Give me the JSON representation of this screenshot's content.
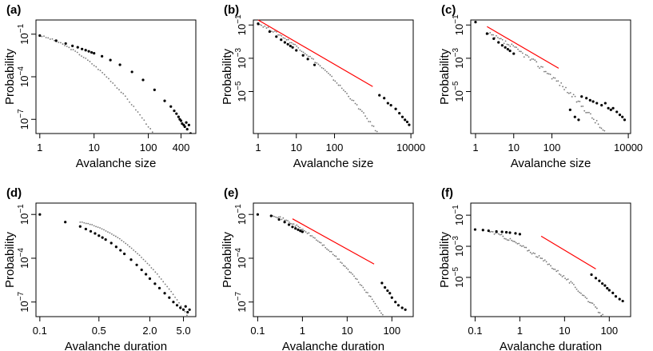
{
  "chart_data": [
    {
      "panel": "(a)",
      "type": "scatter",
      "xlabel": "Avalanche size",
      "ylabel": "Probability",
      "x_scale": "log",
      "y_scale": "log",
      "xlim": [
        0.85,
        750
      ],
      "ylim": [
        1e-08,
        1
      ],
      "x_ticks": [
        {
          "v": 1,
          "t": "1"
        },
        {
          "v": 10,
          "t": "10"
        },
        {
          "v": 100,
          "t": "100"
        },
        {
          "v": 400,
          "t": "400"
        }
      ],
      "y_ticks": [
        {
          "v": 0.1,
          "t": "10",
          "e": "−1"
        },
        {
          "v": 0.0001,
          "t": "10",
          "e": "−4"
        },
        {
          "v": 1e-07,
          "t": "10",
          "e": "−7"
        }
      ],
      "fit_line": null,
      "series": [
        {
          "kind": "curve",
          "x0": 1,
          "x1": 450,
          "y_at_x0": 0.08,
          "curvature": 1.1,
          "n": 70,
          "jitter": 0.1
        },
        {
          "kind": "points",
          "x": [
            1,
            2,
            3,
            4,
            5,
            6,
            7,
            8,
            9,
            10,
            14,
            20,
            30,
            50,
            80,
            130,
            200,
            260,
            300,
            330,
            360,
            380,
            400,
            420,
            450,
            470,
            500,
            520,
            560,
            600
          ],
          "y": [
            0.08,
            0.035,
            0.022,
            0.015,
            0.012,
            0.009,
            0.0075,
            0.0062,
            0.0052,
            0.0045,
            0.0028,
            0.0015,
            0.0007,
            0.00022,
            6e-05,
            1.2e-05,
            2e-06,
            8e-07,
            4e-07,
            2.5e-07,
            1.5e-07,
            1e-07,
            8e-08,
            5e-08,
            4e-08,
            3e-08,
            6e-08,
            2e-08,
            4e-08,
            1e-08
          ]
        }
      ]
    },
    {
      "panel": "(b)",
      "type": "scatter",
      "xlabel": "Avalanche size",
      "ylabel": "Probability",
      "x_scale": "log",
      "y_scale": "log",
      "xlim": [
        0.75,
        11500
      ],
      "ylim": [
        3e-08,
        0.2
      ],
      "x_ticks": [
        {
          "v": 1,
          "t": "1"
        },
        {
          "v": 10,
          "t": "10"
        },
        {
          "v": 100,
          "t": "100"
        },
        {
          "v": 10000,
          "t": "10000"
        }
      ],
      "y_ticks": [
        {
          "v": 0.1,
          "t": "10",
          "e": "−1"
        },
        {
          "v": 0.001,
          "t": "10",
          "e": "−3"
        },
        {
          "v": 1e-05,
          "t": "10",
          "e": "−5"
        }
      ],
      "fit_line": {
        "x": [
          1,
          1000
        ],
        "y": [
          0.2,
          2e-05
        ]
      },
      "series": [
        {
          "kind": "curve",
          "x0": 1,
          "x1": 8000,
          "y_at_x0": 0.12,
          "curvature": 0.35,
          "n": 90,
          "jitter": 0.15
        },
        {
          "kind": "points",
          "x": [
            1,
            2,
            3,
            4,
            5,
            6,
            7,
            8,
            10,
            15,
            20,
            30,
            1500,
            2000,
            2500,
            3000,
            4000,
            5000,
            6000,
            7000,
            8000,
            9000
          ],
          "y": [
            0.12,
            0.04,
            0.02,
            0.013,
            0.009,
            0.007,
            0.0055,
            0.0045,
            0.003,
            0.0015,
            0.0009,
            0.0004,
            6e-06,
            4e-06,
            2e-06,
            1.5e-06,
            9e-07,
            5e-07,
            3e-07,
            2e-07,
            1.5e-07,
            1e-07
          ]
        }
      ]
    },
    {
      "panel": "(c)",
      "type": "scatter",
      "xlabel": "Avalanche size",
      "ylabel": "Probability",
      "x_scale": "log",
      "y_scale": "log",
      "xlim": [
        0.75,
        11500
      ],
      "ylim": [
        3e-08,
        0.2
      ],
      "x_ticks": [
        {
          "v": 1,
          "t": "1"
        },
        {
          "v": 10,
          "t": "10"
        },
        {
          "v": 100,
          "t": "100"
        },
        {
          "v": 10000,
          "t": "10000"
        }
      ],
      "y_ticks": [
        {
          "v": 0.1,
          "t": "10",
          "e": "−1"
        },
        {
          "v": 0.001,
          "t": "10",
          "e": "−3"
        },
        {
          "v": 1e-05,
          "t": "10",
          "e": "−5"
        }
      ],
      "fit_line": {
        "x": [
          2,
          150
        ],
        "y": [
          0.08,
          0.00025
        ]
      },
      "series": [
        {
          "kind": "curve",
          "x0": 2,
          "x1": 8000,
          "y_at_x0": 0.03,
          "curvature": 0.3,
          "n": 90,
          "jitter": 0.3
        },
        {
          "kind": "points",
          "x": [
            1,
            2,
            3,
            4,
            5,
            6,
            7,
            8,
            10,
            300,
            400,
            500,
            600,
            800,
            1000,
            1200,
            1500,
            2000,
            2500,
            3000,
            3500,
            4000,
            5000,
            6000,
            7000,
            8000
          ],
          "y": [
            0.15,
            0.03,
            0.015,
            0.009,
            0.006,
            0.0045,
            0.0035,
            0.0028,
            0.0019,
            8e-07,
            3e-07,
            2e-07,
            5e-06,
            4e-06,
            3e-06,
            2.5e-06,
            2e-06,
            1.5e-06,
            2e-06,
            1e-06,
            8e-07,
            1e-06,
            6e-07,
            4e-07,
            3e-07,
            2e-07
          ]
        }
      ]
    },
    {
      "panel": "(d)",
      "type": "scatter",
      "xlabel": "Avalanche duration",
      "ylabel": "Probability",
      "x_scale": "log",
      "y_scale": "log",
      "xlim": [
        0.09,
        7
      ],
      "ylim": [
        1e-08,
        0.6
      ],
      "x_ticks": [
        {
          "v": 0.1,
          "t": "0.1"
        },
        {
          "v": 0.5,
          "t": "0.5"
        },
        {
          "v": 2,
          "t": "2.0"
        },
        {
          "v": 5,
          "t": "5.0"
        }
      ],
      "y_ticks": [
        {
          "v": 0.1,
          "t": "10",
          "e": "−1"
        },
        {
          "v": 0.0001,
          "t": "10",
          "e": "−4"
        },
        {
          "v": 1e-07,
          "t": "10",
          "e": "−7"
        }
      ],
      "fit_line": null,
      "series": [
        {
          "kind": "curve",
          "x0": 0.3,
          "x1": 5.5,
          "y_at_x0": 0.03,
          "curvature": 3.2,
          "n": 55,
          "jitter": 0.05
        },
        {
          "kind": "points",
          "x": [
            0.1,
            0.2,
            0.3,
            0.35,
            0.4,
            0.45,
            0.5,
            0.55,
            0.6,
            0.7,
            0.8,
            0.9,
            1,
            1.2,
            1.4,
            1.6,
            1.8,
            2,
            2.3,
            2.6,
            3,
            3.4,
            3.8,
            4.2,
            4.6,
            5,
            5.3,
            5.6,
            5.9
          ],
          "y": [
            0.1,
            0.03,
            0.015,
            0.01,
            0.007,
            0.005,
            0.0035,
            0.0026,
            0.0019,
            0.0011,
            0.0006,
            0.00035,
            0.0002,
            8e-05,
            3.5e-05,
            1.6e-05,
            8e-06,
            4e-06,
            1.8e-06,
            9e-07,
            4e-07,
            2e-07,
            1e-07,
            6e-08,
            4e-08,
            3e-08,
            5e-08,
            2e-08,
            3e-08
          ]
        }
      ]
    },
    {
      "panel": "(e)",
      "type": "scatter",
      "xlabel": "Avalanche duration",
      "ylabel": "Probability",
      "x_scale": "log",
      "y_scale": "log",
      "xlim": [
        0.08,
        300
      ],
      "ylim": [
        1e-08,
        0.6
      ],
      "x_ticks": [
        {
          "v": 0.1,
          "t": "0.1"
        },
        {
          "v": 1,
          "t": "1"
        },
        {
          "v": 10,
          "t": "10"
        },
        {
          "v": 100,
          "t": "100"
        }
      ],
      "y_ticks": [
        {
          "v": 0.1,
          "t": "10",
          "e": "−1"
        },
        {
          "v": 0.0001,
          "t": "10",
          "e": "−4"
        },
        {
          "v": 1e-07,
          "t": "10",
          "e": "−7"
        }
      ],
      "fit_line": {
        "x": [
          0.6,
          40
        ],
        "y": [
          0.05,
          4e-05
        ]
      },
      "series": [
        {
          "kind": "curve",
          "x0": 0.2,
          "x1": 200,
          "y_at_x0": 0.1,
          "curvature": 0.7,
          "n": 90,
          "jitter": 0.15
        },
        {
          "kind": "points",
          "x": [
            0.1,
            0.2,
            0.3,
            0.4,
            0.5,
            0.6,
            0.7,
            0.8,
            0.9,
            1,
            60,
            70,
            80,
            90,
            100,
            120,
            140,
            170,
            200
          ],
          "y": [
            0.1,
            0.08,
            0.045,
            0.03,
            0.02,
            0.014,
            0.011,
            0.009,
            0.0075,
            0.0065,
            2e-06,
            1e-06,
            6e-07,
            4e-07,
            2e-07,
            1e-07,
            6e-08,
            4e-08,
            3e-08
          ]
        }
      ]
    },
    {
      "panel": "(f)",
      "type": "scatter",
      "xlabel": "Avalanche duration",
      "ylabel": "Probability",
      "x_scale": "log",
      "y_scale": "log",
      "xlim": [
        0.08,
        300
      ],
      "ylim": [
        3e-08,
        0.6
      ],
      "x_ticks": [
        {
          "v": 0.1,
          "t": "0.1"
        },
        {
          "v": 1,
          "t": "1"
        },
        {
          "v": 10,
          "t": "10"
        },
        {
          "v": 100,
          "t": "100"
        }
      ],
      "y_ticks": [
        {
          "v": 0.1,
          "t": "10",
          "e": "−1"
        },
        {
          "v": 0.001,
          "t": "10",
          "e": "−3"
        },
        {
          "v": 1e-05,
          "t": "10",
          "e": "−5"
        }
      ],
      "fit_line": {
        "x": [
          3,
          50
        ],
        "y": [
          0.0045,
          3.5e-05
        ]
      },
      "series": [
        {
          "kind": "curve",
          "x0": 0.2,
          "x1": 150,
          "y_at_x0": 0.01,
          "curvature": 0.45,
          "n": 90,
          "jitter": 0.2
        },
        {
          "kind": "points",
          "x": [
            0.1,
            0.15,
            0.2,
            0.3,
            0.4,
            0.5,
            0.6,
            0.8,
            1,
            40,
            50,
            60,
            70,
            80,
            90,
            100,
            120,
            140,
            170,
            200
          ],
          "y": [
            0.012,
            0.011,
            0.01,
            0.009,
            0.0085,
            0.008,
            0.0075,
            0.0068,
            0.006,
            1.5e-05,
            9e-06,
            6e-06,
            4e-06,
            3e-06,
            2e-06,
            1.5e-06,
            1e-06,
            6e-07,
            4e-07,
            3e-07
          ]
        }
      ]
    }
  ]
}
